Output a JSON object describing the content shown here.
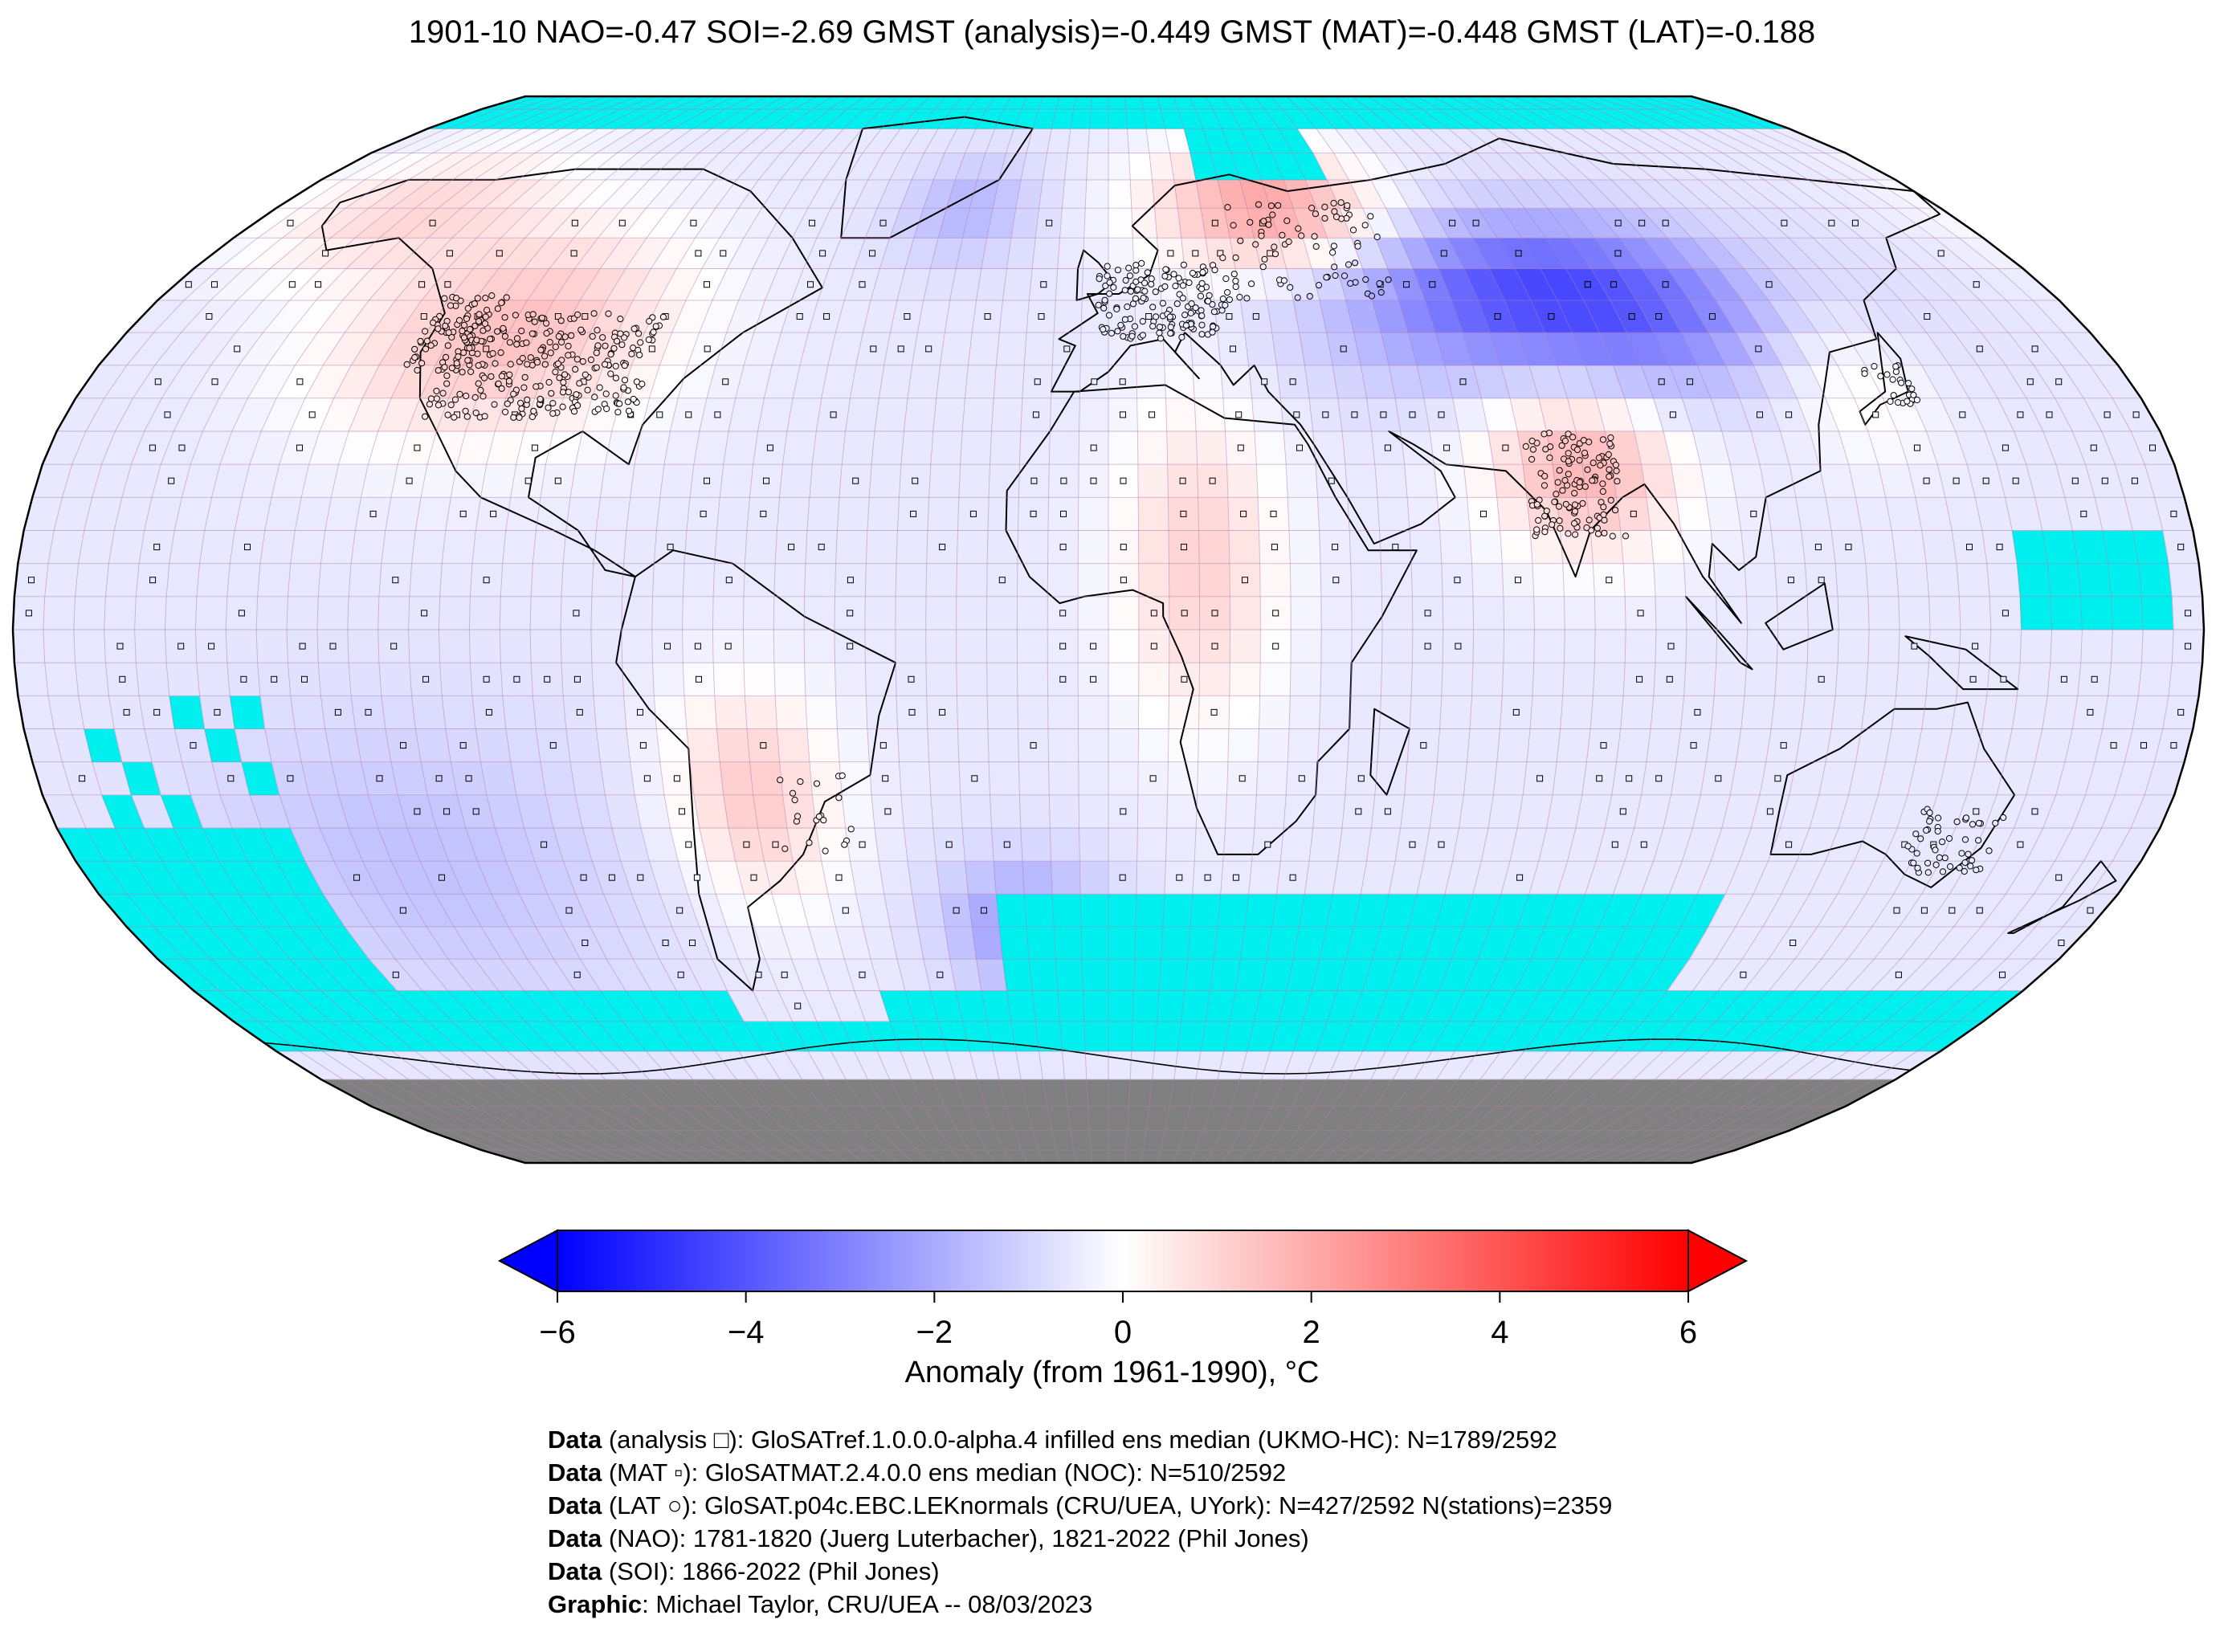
{
  "title": "1901-10 NAO=-0.47 SOI=-2.69 GMST (analysis)=-0.449 GMST (MAT)=-0.448 GMST (LAT)=-0.188",
  "map": {
    "projection": "Robinson",
    "colors": {
      "missing": "#00f0f0",
      "land_mask": "#808080",
      "grid_lines": "#b07fb0",
      "coastline": "#000000"
    },
    "grid": "5x5 degree",
    "markers": {
      "analysis": "square",
      "mat": "small square",
      "lat": "circle"
    }
  },
  "colorbar": {
    "label": "Anomaly (from 1961-1990), °C",
    "ticks": [
      "−6",
      "−4",
      "−2",
      "0",
      "2",
      "4",
      "6"
    ],
    "range": [
      -6,
      6
    ],
    "colormap": "bwr",
    "extend": "both"
  },
  "credits": [
    {
      "key": "Data",
      "text": " (analysis □): GloSATref.1.0.0.0-alpha.4 infilled ens median (UKMO-HC): N=1789/2592"
    },
    {
      "key": "Data",
      "text": " (MAT ▫): GloSATMAT.2.4.0.0 ens median (NOC): N=510/2592"
    },
    {
      "key": "Data",
      "text": " (LAT ○): GloSAT.p04c.EBC.LEKnormals (CRU/UEA, UYork): N=427/2592 N(stations)=2359"
    },
    {
      "key": "Data",
      "text": " (NAO): 1781-1820 (Juerg Luterbacher), 1821-2022 (Phil Jones)"
    },
    {
      "key": "Data",
      "text": " (SOI): 1866-2022 (Phil Jones)"
    },
    {
      "key": "Graphic",
      "text": ": Michael Taylor, CRU/UEA -- 08/03/2023"
    }
  ]
}
